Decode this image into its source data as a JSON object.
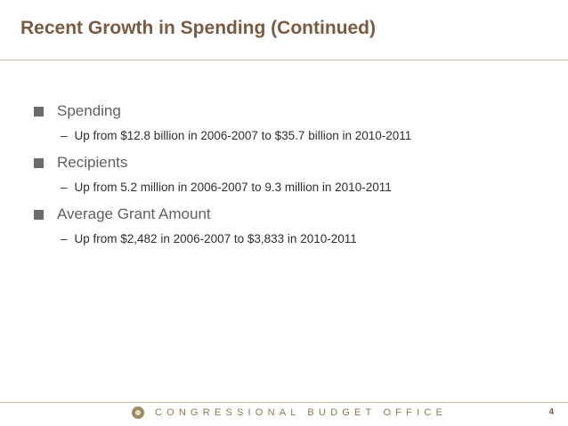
{
  "slide": {
    "title": "Recent Growth in Spending (Continued)",
    "bullets": [
      {
        "label": "Spending",
        "sub": "Up from $12.8 billion in 2006-2007 to $35.7 billion in 2010-2011"
      },
      {
        "label": "Recipients",
        "sub": "Up from 5.2 million in 2006-2007 to 9.3 million in 2010-2011"
      },
      {
        "label": "Average Grant Amount",
        "sub": "Up from $2,482 in 2006-2007 to $3,833 in 2010-2011"
      }
    ],
    "dash": "–"
  },
  "footer": {
    "organization": "CONGRESSIONAL BUDGET OFFICE",
    "page_number": "4",
    "seal_icon": "cbo-seal-icon"
  },
  "colors": {
    "title": "#7a5a41",
    "rule": "#c7bc8c",
    "footer_text": "#8d7a58"
  }
}
